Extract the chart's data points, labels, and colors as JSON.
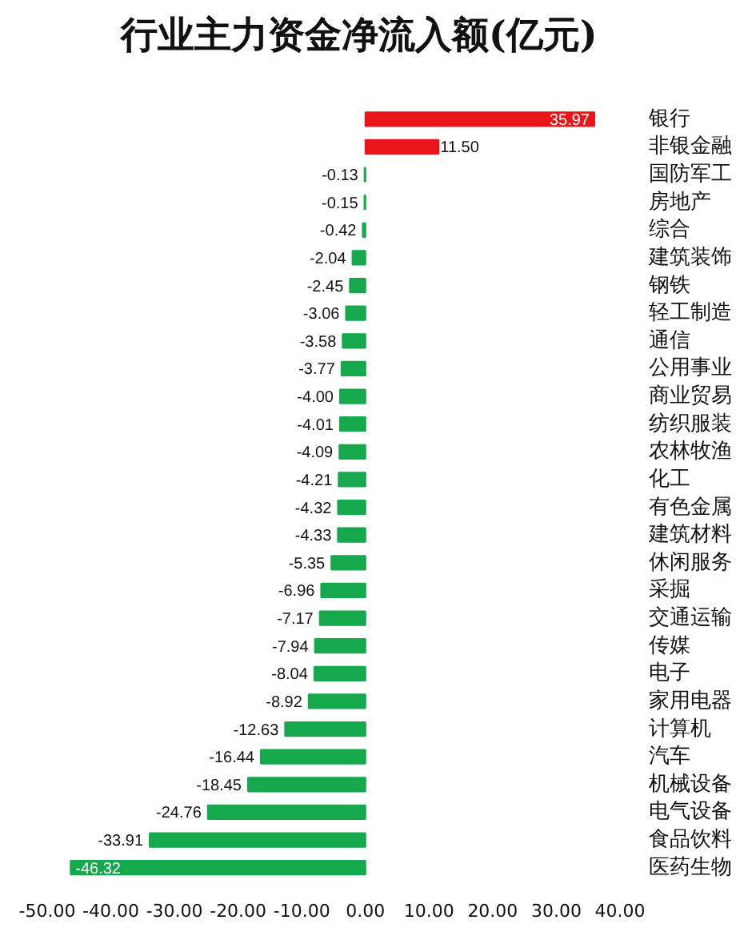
{
  "chart_data": {
    "type": "bar",
    "orientation": "horizontal",
    "title": "行业主力资金净流入额(亿元)",
    "categories": [
      "银行",
      "非银金融",
      "国防军工",
      "房地产",
      "综合",
      "建筑装饰",
      "钢铁",
      "轻工制造",
      "通信",
      "公用事业",
      "商业贸易",
      "纺织服装",
      "农林牧渔",
      "化工",
      "有色金属",
      "建筑材料",
      "休闲服务",
      "采掘",
      "交通运输",
      "传媒",
      "电子",
      "家用电器",
      "计算机",
      "汽车",
      "机械设备",
      "电气设备",
      "食品饮料",
      "医药生物"
    ],
    "values": [
      35.97,
      11.5,
      -0.13,
      -0.15,
      -0.42,
      -2.04,
      -2.45,
      -3.06,
      -3.58,
      -3.77,
      -4.0,
      -4.01,
      -4.09,
      -4.21,
      -4.32,
      -4.33,
      -5.35,
      -6.96,
      -7.17,
      -7.94,
      -8.04,
      -8.92,
      -12.63,
      -16.44,
      -18.45,
      -24.76,
      -33.91,
      -46.32
    ],
    "value_labels": [
      "35.97",
      "11.50",
      "-0.13",
      "-0.15",
      "-0.42",
      "-2.04",
      "-2.45",
      "-3.06",
      "-3.58",
      "-3.77",
      "-4.00",
      "-4.01",
      "-4.09",
      "-4.21",
      "-4.32",
      "-4.33",
      "-5.35",
      "-6.96",
      "-7.17",
      "-7.94",
      "-8.04",
      "-8.92",
      "-12.63",
      "-16.44",
      "-18.45",
      "-24.76",
      "-33.91",
      "-46.32"
    ],
    "colors": [
      "#e8161b",
      "#e8161b",
      "#16a84d",
      "#16a84d",
      "#16a84d",
      "#16a84d",
      "#16a84d",
      "#16a84d",
      "#16a84d",
      "#16a84d",
      "#16a84d",
      "#16a84d",
      "#16a84d",
      "#16a84d",
      "#16a84d",
      "#16a84d",
      "#16a84d",
      "#16a84d",
      "#16a84d",
      "#16a84d",
      "#16a84d",
      "#16a84d",
      "#16a84d",
      "#16a84d",
      "#16a84d",
      "#16a84d",
      "#16a84d",
      "#16a84d"
    ],
    "xlim": [
      -50,
      40
    ],
    "xticks": [
      {
        "value": -50,
        "label": "-50.00"
      },
      {
        "value": -40,
        "label": "-40.00"
      },
      {
        "value": -30,
        "label": "-30.00"
      },
      {
        "value": -20,
        "label": "-20.00"
      },
      {
        "value": -10,
        "label": "-10.00"
      },
      {
        "value": 0,
        "label": "0.00"
      },
      {
        "value": 10,
        "label": "10.00"
      },
      {
        "value": 20,
        "label": "20.00"
      },
      {
        "value": 30,
        "label": "30.00"
      },
      {
        "value": 40,
        "label": "40.00"
      }
    ]
  }
}
